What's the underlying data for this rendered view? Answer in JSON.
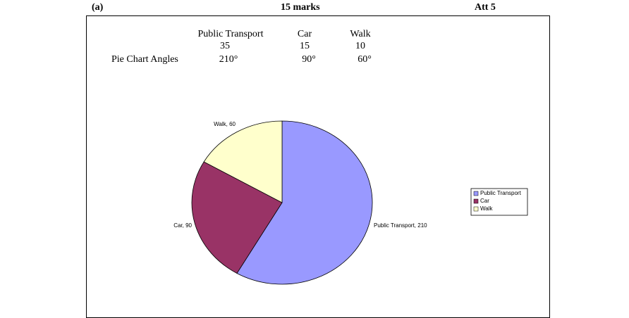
{
  "header": {
    "part": "(a)",
    "marks": "15 marks",
    "attempt": "Att 5"
  },
  "table": {
    "columns": [
      "Public Transport",
      "Car",
      "Walk"
    ],
    "counts": [
      "35",
      "15",
      "10"
    ],
    "angles_label": "Pie Chart Angles",
    "angles": [
      "210°",
      "90°",
      "60°"
    ]
  },
  "chart_data": {
    "type": "pie",
    "categories": [
      "Public Transport",
      "Car",
      "Walk"
    ],
    "values": [
      210,
      90,
      60
    ],
    "value_labels": [
      "Public Transport, 210",
      "Car, 90",
      "Walk, 60"
    ],
    "colors": [
      "#9999ff",
      "#993366",
      "#ffffcc"
    ],
    "legend": "right"
  }
}
